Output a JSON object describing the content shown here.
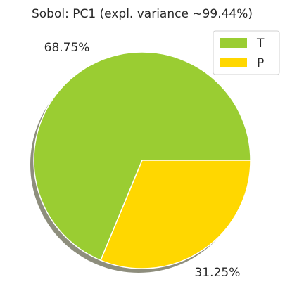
{
  "chart_data": {
    "type": "pie",
    "title": "Sobol: PC1 (expl. variance ∼99.44%)",
    "categories": [
      "T",
      "P"
    ],
    "values": [
      68.75,
      31.25
    ],
    "value_labels": [
      "68.75%",
      "31.25%"
    ],
    "colors": [
      "#9acd32",
      "#ffd700"
    ],
    "shadow": true,
    "legend": "upper right"
  }
}
